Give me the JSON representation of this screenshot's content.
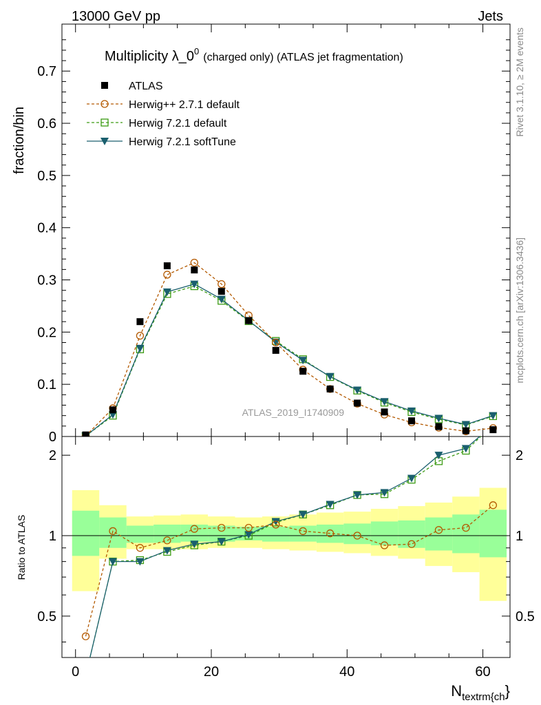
{
  "header": {
    "left": "13000 GeV pp",
    "right": "Jets"
  },
  "side_labels": {
    "rivet": "Rivet 3.1.10, ≥ 2M events",
    "mcplots": "mcplots.cern.ch [arXiv:1306.3436]"
  },
  "chart_data": {
    "type": "scatter",
    "title_main": "Multiplicity λ_0",
    "title_sup": "0",
    "title_rest": "(charged only) (ATLAS jet fragmentation)",
    "watermark": "ATLAS_2019_I1740909",
    "xlabel": "N",
    "xlabel_sub": "textrm{ch",
    "xlabel_tail": "}",
    "ylabel": "fraction/bin",
    "ratio_ylabel": "Ratio to ATLAS",
    "xlim": [
      -2,
      64
    ],
    "ylim": [
      0,
      0.79
    ],
    "ratio_ylim": [
      0.35,
      2.35
    ],
    "x_ticks": [
      "0",
      "20",
      "40",
      "60"
    ],
    "y_ticks": [
      "0",
      "0.1",
      "0.2",
      "0.3",
      "0.4",
      "0.5",
      "0.6",
      "0.7"
    ],
    "ratio_ticks": [
      "0.5",
      "1",
      "2"
    ],
    "x": [
      1.5,
      5.5,
      9.5,
      13.5,
      17.5,
      21.5,
      25.5,
      29.5,
      33.5,
      37.5,
      41.5,
      45.5,
      49.5,
      53.5,
      57.5,
      61.5
    ],
    "series": [
      {
        "name": "ATLAS",
        "color": "#000000",
        "marker": "square-filled",
        "values": [
          0.003,
          0.051,
          0.22,
          0.327,
          0.319,
          0.278,
          0.222,
          0.165,
          0.125,
          0.091,
          0.064,
          0.047,
          0.03,
          0.019,
          0.011,
          0.013
        ]
      },
      {
        "name": "Herwig++ 2.7.1 default",
        "color": "#b35900",
        "marker": "circle-open",
        "dash": true,
        "values": [
          0.001,
          0.054,
          0.193,
          0.31,
          0.333,
          0.292,
          0.232,
          0.18,
          0.128,
          0.091,
          0.063,
          0.042,
          0.027,
          0.017,
          0.01,
          0.016
        ]
      },
      {
        "name": "Herwig 7.2.1 default",
        "color": "#3a9a12",
        "marker": "square-open",
        "dash": true,
        "values": [
          0.001,
          0.04,
          0.167,
          0.273,
          0.288,
          0.26,
          0.221,
          0.183,
          0.148,
          0.114,
          0.088,
          0.065,
          0.047,
          0.033,
          0.022,
          0.039
        ]
      },
      {
        "name": "Herwig 7.2.1 softTune",
        "color": "#1a5f6e",
        "marker": "triangle-down",
        "dash": false,
        "values": [
          0.001,
          0.042,
          0.169,
          0.277,
          0.292,
          0.263,
          0.222,
          0.181,
          0.146,
          0.115,
          0.089,
          0.067,
          0.049,
          0.035,
          0.023,
          0.04
        ]
      }
    ],
    "ratio_series": [
      {
        "name": "Herwig++ 2.7.1 default",
        "values": [
          0.42,
          1.04,
          0.9,
          0.96,
          1.06,
          1.07,
          1.07,
          1.1,
          1.04,
          1.02,
          1.0,
          0.92,
          0.93,
          1.05,
          1.07,
          1.3
        ]
      },
      {
        "name": "Herwig 7.2.1 default",
        "values": [
          0.3,
          0.8,
          0.81,
          0.87,
          0.92,
          0.95,
          1.0,
          1.12,
          1.2,
          1.3,
          1.42,
          1.43,
          1.62,
          1.9,
          2.08,
          2.6
        ]
      },
      {
        "name": "Herwig 7.2.1 softTune",
        "values": [
          0.3,
          0.8,
          0.8,
          0.88,
          0.93,
          0.95,
          1.01,
          1.13,
          1.2,
          1.31,
          1.42,
          1.45,
          1.64,
          2.0,
          2.12,
          2.6
        ]
      }
    ],
    "bands": {
      "edges": [
        -0.5,
        3.5,
        7.5,
        11.5,
        15.5,
        19.5,
        23.5,
        27.5,
        31.5,
        35.5,
        39.5,
        43.5,
        47.5,
        51.5,
        55.5,
        59.5,
        63.5
      ],
      "yellow_color": "#ffff99",
      "green_color": "#99ff99",
      "yellow": [
        [
          0.62,
          1.48
        ],
        [
          0.82,
          1.3
        ],
        [
          0.89,
          1.18
        ],
        [
          0.89,
          1.19
        ],
        [
          0.89,
          1.2
        ],
        [
          0.9,
          1.18
        ],
        [
          0.9,
          1.17
        ],
        [
          0.89,
          1.18
        ],
        [
          0.88,
          1.2
        ],
        [
          0.87,
          1.22
        ],
        [
          0.86,
          1.23
        ],
        [
          0.84,
          1.26
        ],
        [
          0.82,
          1.29
        ],
        [
          0.77,
          1.33
        ],
        [
          0.73,
          1.4
        ],
        [
          0.57,
          1.51
        ]
      ],
      "green": [
        [
          0.84,
          1.24
        ],
        [
          0.9,
          1.17
        ],
        [
          0.94,
          1.09
        ],
        [
          0.94,
          1.1
        ],
        [
          0.95,
          1.1
        ],
        [
          0.95,
          1.09
        ],
        [
          0.96,
          1.08
        ],
        [
          0.95,
          1.08
        ],
        [
          0.95,
          1.09
        ],
        [
          0.94,
          1.1
        ],
        [
          0.93,
          1.11
        ],
        [
          0.92,
          1.13
        ],
        [
          0.9,
          1.14
        ],
        [
          0.88,
          1.17
        ],
        [
          0.86,
          1.2
        ],
        [
          0.83,
          1.25
        ]
      ]
    }
  }
}
